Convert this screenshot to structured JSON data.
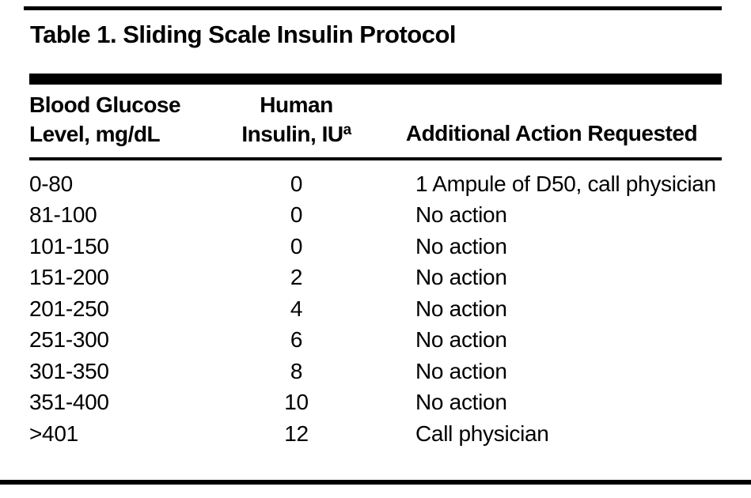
{
  "title": "Table 1. Sliding Scale Insulin Protocol",
  "columns": {
    "glucose": {
      "line1": "Blood Glucose",
      "line2": "Level, mg/dL"
    },
    "insulin": {
      "line1": "Human",
      "line2": "Insulin, IU",
      "superscript": "a"
    },
    "action": {
      "label": "Additional Action Requested"
    }
  },
  "rows": [
    {
      "glucose": "0-80",
      "insulin": "0",
      "action": "1 Ampule of D50, call physician"
    },
    {
      "glucose": "81-100",
      "insulin": "0",
      "action": "No action"
    },
    {
      "glucose": "101-150",
      "insulin": "0",
      "action": "No action"
    },
    {
      "glucose": "151-200",
      "insulin": "2",
      "action": "No action"
    },
    {
      "glucose": "201-250",
      "insulin": "4",
      "action": "No action"
    },
    {
      "glucose": "251-300",
      "insulin": "6",
      "action": "No action"
    },
    {
      "glucose": "301-350",
      "insulin": "8",
      "action": "No action"
    },
    {
      "glucose": "351-400",
      "insulin": "10",
      "action": "No action"
    },
    {
      "glucose": ">401",
      "insulin": "12",
      "action": "Call physician"
    }
  ]
}
